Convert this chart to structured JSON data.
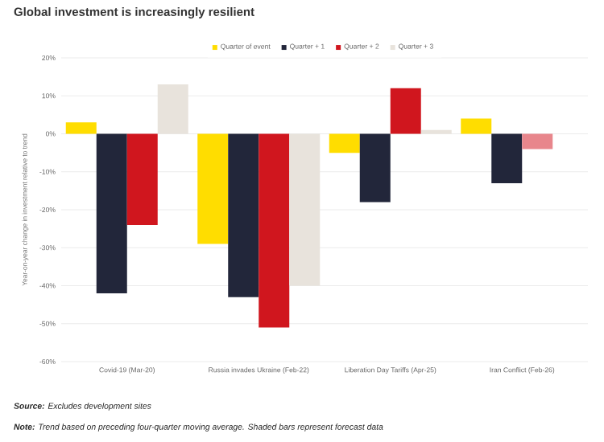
{
  "chart_data": {
    "type": "bar",
    "title": "Global investment is increasingly resilient",
    "ylabel": "Year-on-year change in investment relative to trend",
    "categories": [
      "Covid-19 (Mar-20)",
      "Russia invades Ukraine (Feb-22)",
      "Liberation Day Tariffs (Apr-25)",
      "Iran Conflict (Feb-26)"
    ],
    "series": [
      {
        "name": "Quarter of event",
        "color": "#ffdd00",
        "values": [
          3,
          -29,
          -5,
          4
        ]
      },
      {
        "name": "Quarter + 1",
        "color": "#22263a",
        "values": [
          -42,
          -43,
          -18,
          -13
        ]
      },
      {
        "name": "Quarter + 2",
        "color": "#d0161e",
        "colors": [
          "#d0161e",
          "#d0161e",
          "#d0161e",
          "#e8868c"
        ],
        "values": [
          -24,
          -51,
          12,
          -4
        ]
      },
      {
        "name": "Quarter + 3",
        "color": "#e8e3dc",
        "values": [
          13,
          -40,
          1,
          null
        ]
      }
    ],
    "ylim": [
      -60,
      20
    ],
    "yticks": [
      {
        "value": -60,
        "label": "-60%"
      },
      {
        "value": -50,
        "label": "-50%"
      },
      {
        "value": -40,
        "label": "-40%"
      },
      {
        "value": -30,
        "label": "-30%"
      },
      {
        "value": -20,
        "label": "-20%"
      },
      {
        "value": -10,
        "label": "-10%"
      },
      {
        "value": 0,
        "label": "0%"
      },
      {
        "value": 10,
        "label": "10%"
      },
      {
        "value": 20,
        "label": "20%"
      }
    ],
    "grid": "y",
    "legend": "top",
    "annotations": [
      "**Source:** Excludes development sites",
      "**Note:** Trend based on preceding four-quarter moving average. Shaded bars represent forecast data"
    ]
  }
}
